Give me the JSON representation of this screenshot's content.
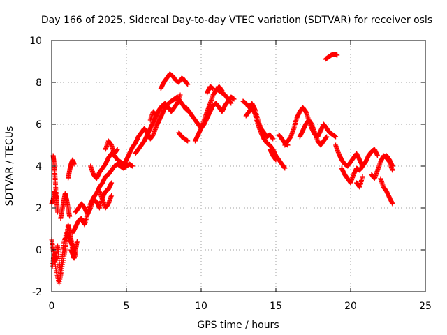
{
  "chart_data": {
    "type": "scatter",
    "title": "Day 166 of 2025, Sidereal Day-to-day VTEC variation (SDTVAR) for receiver osls",
    "xlabel": "GPS time / hours",
    "ylabel": "SDTVAR / TECUs",
    "xlim": [
      0,
      25
    ],
    "ylim": [
      -2,
      10
    ],
    "xticks": [
      0,
      5,
      10,
      15,
      20,
      25
    ],
    "yticks": [
      -2,
      0,
      2,
      4,
      6,
      8,
      10
    ],
    "xtick_labels": [
      "0",
      "5",
      "10",
      "15",
      "20",
      "25"
    ],
    "ytick_labels": [
      "-2",
      "0",
      "2",
      "4",
      "6",
      "8",
      "10"
    ],
    "grid": true,
    "marker": "plus",
    "series": [
      {
        "name": "SDTVAR",
        "color": "#ff0000",
        "segments": [
          {
            "x": [
              0.0,
              0.1,
              0.2,
              0.3,
              0.4,
              0.5,
              0.6,
              0.7,
              0.8,
              1.0,
              1.2,
              1.4,
              1.6
            ],
            "y": [
              0.5,
              0.0,
              -0.6,
              -0.3,
              0.2,
              -0.5,
              -1.2,
              -0.4,
              0.3,
              0.8,
              0.5,
              0.2,
              -0.3
            ]
          },
          {
            "x": [
              0.05,
              0.15,
              0.3,
              0.5,
              0.7,
              0.9,
              1.0,
              1.1,
              1.2,
              1.3,
              1.4
            ],
            "y": [
              -0.8,
              -0.2,
              -1.0,
              -1.6,
              -0.8,
              0.0,
              0.6,
              1.2,
              0.9,
              0.5,
              0.0
            ]
          },
          {
            "x": [
              0.1,
              0.15,
              0.2,
              0.25,
              0.3,
              0.35,
              0.4
            ],
            "y": [
              4.5,
              4.2,
              3.8,
              3.2,
              2.6,
              2.2,
              1.8
            ]
          },
          {
            "x": [
              0.0,
              0.1,
              0.2,
              0.3
            ],
            "y": [
              2.2,
              2.4,
              2.8,
              2.5
            ]
          },
          {
            "x": [
              0.6,
              0.7,
              0.8,
              0.9,
              1.0,
              1.1,
              1.2
            ],
            "y": [
              1.5,
              1.9,
              2.3,
              2.7,
              2.4,
              2.0,
              1.6
            ]
          },
          {
            "x": [
              1.1,
              1.2,
              1.3,
              1.4,
              1.5
            ],
            "y": [
              3.4,
              3.8,
              4.1,
              4.3,
              4.1
            ]
          },
          {
            "x": [
              1.3,
              1.4,
              1.5,
              1.6,
              1.7
            ],
            "y": [
              0.0,
              -0.2,
              -0.4,
              0.0,
              0.4
            ]
          },
          {
            "x": [
              1.4,
              1.6,
              1.8,
              2.0,
              2.2,
              2.4,
              2.6,
              2.8,
              3.0,
              3.2,
              3.4,
              3.6,
              3.8,
              4.0,
              4.2,
              4.4,
              4.6,
              4.8,
              5.0
            ],
            "y": [
              0.8,
              1.1,
              1.4,
              1.5,
              1.2,
              1.7,
              2.2,
              2.5,
              2.7,
              3.0,
              3.2,
              3.5,
              3.6,
              3.8,
              4.0,
              4.1,
              4.0,
              3.9,
              4.0
            ]
          },
          {
            "x": [
              1.6,
              1.8,
              2.0,
              2.2,
              2.4,
              2.6,
              2.8,
              3.0,
              3.2,
              3.4,
              3.6,
              3.8,
              4.0
            ],
            "y": [
              1.8,
              2.0,
              2.2,
              2.0,
              1.7,
              2.0,
              2.4,
              2.3,
              2.0,
              2.5,
              2.8,
              2.9,
              3.2
            ]
          },
          {
            "x": [
              2.6,
              2.8,
              3.0,
              3.2,
              3.4,
              3.6,
              3.8,
              4.0,
              4.2,
              4.4,
              4.6,
              4.8,
              5.0,
              5.2,
              5.4
            ],
            "y": [
              4.0,
              3.6,
              3.4,
              3.7,
              3.9,
              4.1,
              4.4,
              4.6,
              4.5,
              4.3,
              4.2,
              4.1,
              4.0,
              4.1,
              4.0
            ]
          },
          {
            "x": [
              3.2,
              3.4,
              3.6,
              3.8,
              4.0
            ],
            "y": [
              2.8,
              2.4,
              2.0,
              2.2,
              2.6
            ]
          },
          {
            "x": [
              3.6,
              3.8,
              4.0,
              4.2,
              4.4
            ],
            "y": [
              4.8,
              5.2,
              5.0,
              4.6,
              4.8
            ]
          },
          {
            "x": [
              4.8,
              5.0,
              5.2,
              5.4,
              5.6,
              5.8,
              6.0,
              6.2,
              6.4,
              6.6,
              6.8,
              7.0,
              7.2,
              7.4,
              7.6,
              7.8,
              8.0,
              8.2,
              8.4,
              8.6,
              8.8,
              9.0,
              9.2
            ],
            "y": [
              4.0,
              4.3,
              4.6,
              4.9,
              5.1,
              5.4,
              5.6,
              5.8,
              5.6,
              5.3,
              5.5,
              5.9,
              6.2,
              6.5,
              6.8,
              7.0,
              7.1,
              7.2,
              7.3,
              7.1,
              6.9,
              6.7,
              6.6
            ]
          },
          {
            "x": [
              5.6,
              5.8,
              6.0,
              6.2,
              6.4,
              6.6,
              6.8,
              7.0,
              7.2,
              7.4,
              7.6,
              7.8,
              8.0,
              8.2,
              8.4,
              8.6
            ],
            "y": [
              4.6,
              4.8,
              5.0,
              5.2,
              5.5,
              5.8,
              6.1,
              6.4,
              6.7,
              6.9,
              7.0,
              6.8,
              6.6,
              6.8,
              7.0,
              7.4
            ]
          },
          {
            "x": [
              6.6,
              6.8,
              7.0
            ],
            "y": [
              6.2,
              6.6,
              6.4
            ]
          },
          {
            "x": [
              7.3,
              7.5,
              7.7,
              7.9,
              8.1,
              8.3,
              8.5,
              8.7,
              8.9,
              9.1
            ],
            "y": [
              7.7,
              8.0,
              8.2,
              8.4,
              8.3,
              8.1,
              8.0,
              8.2,
              8.1,
              7.9
            ]
          },
          {
            "x": [
              8.5,
              8.7,
              8.9,
              9.1
            ],
            "y": [
              5.6,
              5.4,
              5.3,
              5.2
            ]
          },
          {
            "x": [
              9.0,
              9.2,
              9.4,
              9.6,
              9.8,
              10.0,
              10.2,
              10.4,
              10.6,
              10.8,
              11.0,
              11.2,
              11.4,
              11.6,
              11.8,
              12.0,
              12.2
            ],
            "y": [
              6.8,
              6.6,
              6.4,
              6.2,
              6.0,
              5.8,
              6.0,
              6.3,
              6.6,
              6.9,
              7.0,
              6.8,
              6.6,
              6.9,
              7.1,
              7.3,
              7.2
            ]
          },
          {
            "x": [
              9.6,
              9.8,
              10.0,
              10.2,
              10.4,
              10.6,
              10.8,
              11.0,
              11.2,
              11.4
            ],
            "y": [
              5.2,
              5.5,
              5.8,
              6.2,
              6.6,
              7.0,
              7.4,
              7.6,
              7.8,
              7.6
            ]
          },
          {
            "x": [
              10.4,
              10.6,
              10.8
            ],
            "y": [
              7.5,
              7.8,
              7.7
            ]
          },
          {
            "x": [
              11.0,
              11.2,
              11.4,
              11.6,
              11.8,
              12.0
            ],
            "y": [
              7.7,
              7.6,
              7.5,
              7.4,
              7.2,
              7.0
            ]
          },
          {
            "x": [
              12.8,
              13.0,
              13.2,
              13.4,
              13.6,
              13.8,
              14.0,
              14.2,
              14.4,
              14.6,
              14.8
            ],
            "y": [
              7.1,
              7.0,
              6.8,
              7.0,
              6.7,
              6.2,
              5.8,
              5.6,
              5.4,
              5.5,
              5.3
            ]
          },
          {
            "x": [
              13.0,
              13.2,
              13.4,
              13.6,
              13.8,
              14.0,
              14.2,
              14.4,
              14.6,
              14.8,
              15.0,
              15.2,
              15.4,
              15.6
            ],
            "y": [
              6.4,
              6.6,
              6.8,
              6.5,
              6.0,
              5.6,
              5.3,
              5.1,
              5.0,
              4.8,
              4.5,
              4.3,
              4.1,
              3.9
            ]
          },
          {
            "x": [
              14.6,
              14.8,
              15.0
            ],
            "y": [
              4.8,
              4.5,
              4.3
            ]
          },
          {
            "x": [
              15.2,
              15.4,
              15.6,
              15.8
            ],
            "y": [
              5.5,
              5.3,
              5.1,
              5.0
            ]
          },
          {
            "x": [
              15.6,
              15.8,
              16.0,
              16.2,
              16.4,
              16.6,
              16.8,
              17.0,
              17.2,
              17.4,
              17.6,
              17.8,
              18.0,
              18.2,
              18.4,
              18.6,
              18.8,
              19.0
            ],
            "y": [
              5.0,
              5.2,
              5.4,
              5.8,
              6.3,
              6.6,
              6.8,
              6.6,
              6.2,
              5.8,
              5.5,
              5.4,
              5.7,
              6.0,
              5.8,
              5.6,
              5.5,
              5.4
            ]
          },
          {
            "x": [
              16.6,
              16.8,
              17.0,
              17.2,
              17.4,
              17.6,
              17.8,
              18.0,
              18.2,
              18.4
            ],
            "y": [
              5.4,
              5.7,
              6.0,
              6.2,
              6.0,
              5.6,
              5.2,
              5.0,
              5.2,
              5.4
            ]
          },
          {
            "x": [
              18.3,
              18.5,
              18.7,
              18.9,
              19.1
            ],
            "y": [
              9.1,
              9.2,
              9.3,
              9.35,
              9.3
            ]
          },
          {
            "x": [
              19.0,
              19.2,
              19.4,
              19.6,
              19.8,
              20.0,
              20.2,
              20.4,
              20.6,
              20.8,
              21.0,
              21.2,
              21.4,
              21.6,
              21.8
            ],
            "y": [
              5.0,
              4.6,
              4.3,
              4.1,
              4.0,
              4.2,
              4.4,
              4.6,
              4.3,
              4.0,
              4.2,
              4.5,
              4.7,
              4.8,
              4.5
            ]
          },
          {
            "x": [
              19.4,
              19.6,
              19.8,
              20.0,
              20.2,
              20.4,
              20.6,
              20.8
            ],
            "y": [
              3.9,
              3.6,
              3.4,
              3.2,
              3.6,
              3.9,
              3.8,
              4.0
            ]
          },
          {
            "x": [
              20.4,
              20.6,
              20.8
            ],
            "y": [
              3.2,
              3.0,
              3.5
            ]
          },
          {
            "x": [
              21.4,
              21.6,
              21.8,
              22.0,
              22.2,
              22.4,
              22.6,
              22.8
            ],
            "y": [
              3.6,
              3.4,
              3.8,
              4.2,
              4.5,
              4.4,
              4.2,
              3.8
            ]
          },
          {
            "x": [
              22.0,
              22.2,
              22.4,
              22.6,
              22.8
            ],
            "y": [
              3.4,
              3.0,
              2.8,
              2.5,
              2.2
            ]
          },
          {
            "x": [
              22.4,
              22.6,
              22.8
            ],
            "y": [
              4.5,
              4.3,
              4.0
            ]
          }
        ]
      }
    ]
  }
}
